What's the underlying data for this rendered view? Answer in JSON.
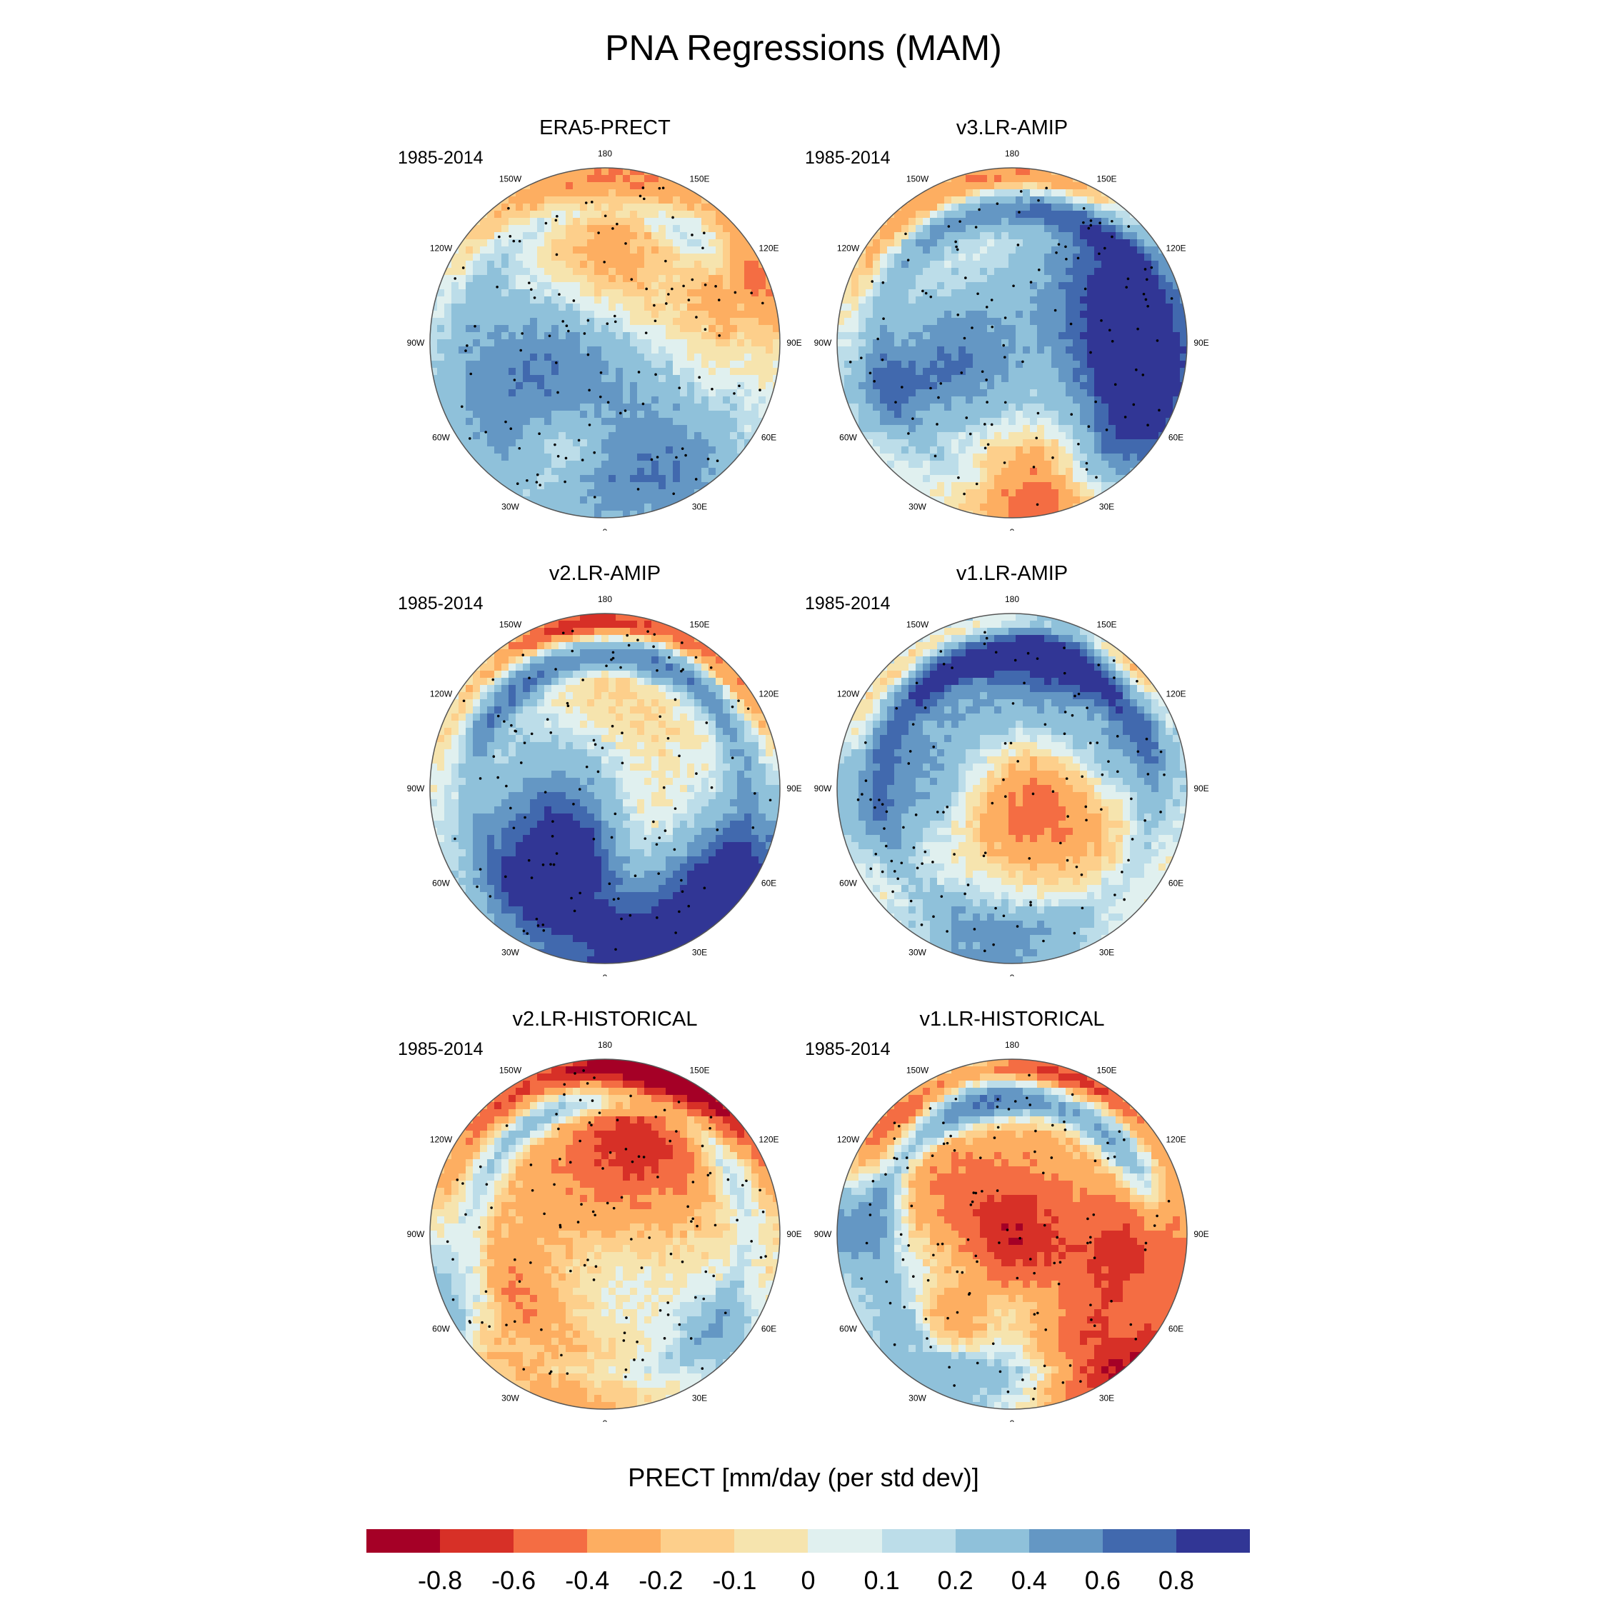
{
  "title": "PNA Regressions (MAM)",
  "panels": [
    {
      "id": "era5",
      "title": "ERA5-PRECT",
      "period": "1985-2014",
      "seed": 11,
      "bias": 0.02,
      "ring": 0.25
    },
    {
      "id": "v3amip",
      "title": "v3.LR-AMIP",
      "period": "1985-2014",
      "seed": 23,
      "bias": 0.05,
      "ring": 0.55
    },
    {
      "id": "v2amip",
      "title": "v2.LR-AMIP",
      "period": "1985-2014",
      "seed": 37,
      "bias": 0.04,
      "ring": 0.75
    },
    {
      "id": "v1amip",
      "title": "v1.LR-AMIP",
      "period": "1985-2014",
      "seed": 41,
      "bias": 0.03,
      "ring": 0.7
    },
    {
      "id": "v2hist",
      "title": "v2.LR-HISTORICAL",
      "period": "1985-2014",
      "seed": 53,
      "bias": 0.05,
      "ring": 0.65
    },
    {
      "id": "v1hist",
      "title": "v1.LR-HISTORICAL",
      "period": "1985-2014",
      "seed": 67,
      "bias": 0.04,
      "ring": 0.7
    }
  ],
  "longitude_labels": [
    "180",
    "150E",
    "120E",
    "90E",
    "60E",
    "30E",
    "0",
    "30W",
    "60W",
    "90W",
    "120W",
    "150W"
  ],
  "legend": {
    "title": "PRECT [mm/day (per std dev)]",
    "tick_labels": [
      "-0.8",
      "-0.6",
      "-0.4",
      "-0.2",
      "-0.1",
      "0",
      "0.1",
      "0.2",
      "0.4",
      "0.6",
      "0.8"
    ],
    "colors": [
      "#a50026",
      "#d73027",
      "#f46d43",
      "#fdae61",
      "#fdcf8b",
      "#f6e4ae",
      "#e0f0ef",
      "#bcdde9",
      "#8fc1da",
      "#6497c4",
      "#4169ae",
      "#313695"
    ]
  }
}
